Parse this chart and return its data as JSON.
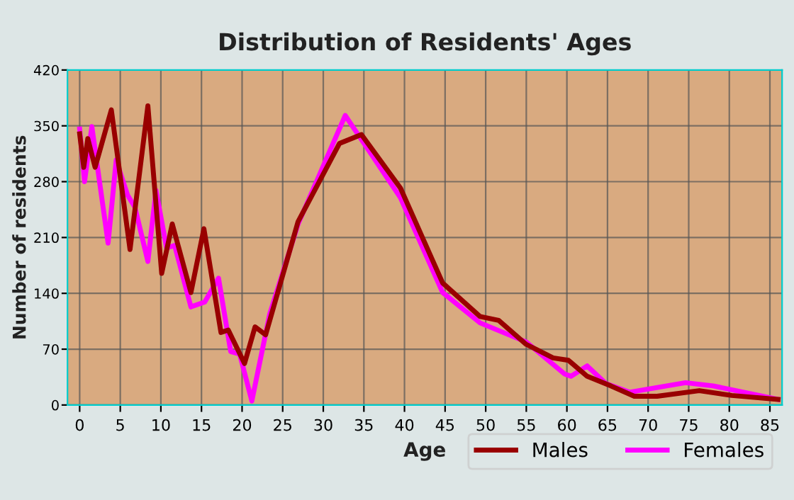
{
  "chart_data": {
    "type": "line",
    "title": "Distribution of Residents' Ages",
    "xlabel": "Age",
    "ylabel": "Number of residents",
    "xlim": [
      -1.5,
      86.5
    ],
    "xticks": [
      0,
      5,
      10,
      15,
      20,
      25,
      30,
      35,
      40,
      45,
      50,
      55,
      60,
      65,
      70,
      75,
      80,
      85
    ],
    "ylim": [
      0,
      420
    ],
    "yticks": [
      0,
      70,
      140,
      210,
      280,
      350,
      420
    ],
    "grid": true,
    "legend": "bottom right",
    "series": [
      {
        "name": "Males",
        "color": "#990000",
        "x": [
          0,
          0.5,
          1.0,
          1.9,
          3.9,
          6.2,
          8.4,
          10.1,
          11.4,
          13.7,
          15.3,
          17.4,
          18.3,
          20.3,
          21.6,
          22.9,
          26.9,
          32,
          34.7,
          39.5,
          44.7,
          49.3,
          51.6,
          55,
          58.3,
          60.2,
          62.5,
          65.4,
          68.3,
          71.1,
          76.3,
          80.3,
          86
        ],
        "values": [
          340,
          298,
          334,
          298,
          370,
          195,
          375,
          165,
          227,
          141,
          221,
          91,
          94,
          52,
          98,
          88,
          230,
          328,
          339,
          272,
          153,
          111,
          106,
          76,
          59,
          56,
          36,
          24,
          11,
          11,
          18,
          12,
          7
        ]
      },
      {
        "name": "Females",
        "color": "#ff00ff",
        "x": [
          0,
          0.6,
          1.5,
          3.5,
          4.5,
          5.9,
          6.8,
          8.4,
          9.4,
          10.7,
          11.7,
          13.7,
          15.4,
          17.1,
          18.6,
          19.7,
          21.2,
          23.4,
          26.9,
          32.7,
          39.5,
          44.7,
          49.3,
          55,
          59.7,
          60.5,
          62.5,
          64.8,
          67.7,
          74.6,
          78,
          86
        ],
        "values": [
          346,
          280,
          349,
          203,
          307,
          263,
          248,
          180,
          269,
          197,
          200,
          123,
          129,
          159,
          67,
          64,
          5,
          114,
          227,
          363,
          260,
          141,
          103,
          79,
          39,
          36,
          49,
          27,
          16,
          28,
          24,
          7
        ]
      }
    ]
  }
}
